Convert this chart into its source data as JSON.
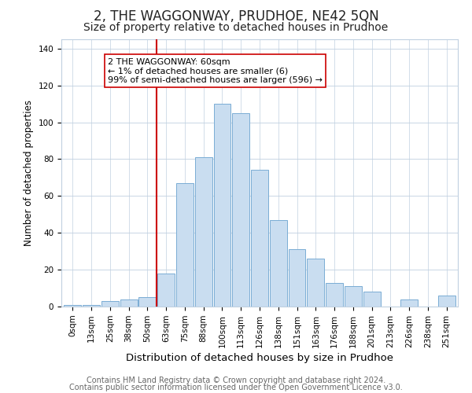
{
  "title": "2, THE WAGGONWAY, PRUDHOE, NE42 5QN",
  "subtitle": "Size of property relative to detached houses in Prudhoe",
  "xlabel": "Distribution of detached houses by size in Prudhoe",
  "ylabel": "Number of detached properties",
  "bar_labels": [
    "0sqm",
    "13sqm",
    "25sqm",
    "38sqm",
    "50sqm",
    "63sqm",
    "75sqm",
    "88sqm",
    "100sqm",
    "113sqm",
    "126sqm",
    "138sqm",
    "151sqm",
    "163sqm",
    "176sqm",
    "188sqm",
    "201sqm",
    "213sqm",
    "226sqm",
    "238sqm",
    "251sqm"
  ],
  "bar_heights": [
    1,
    1,
    3,
    4,
    5,
    18,
    67,
    81,
    110,
    105,
    74,
    47,
    31,
    26,
    13,
    11,
    8,
    0,
    4,
    0,
    6
  ],
  "bar_color": "#c9ddf0",
  "bar_edge_color": "#7aadd4",
  "vline_x_idx": 5,
  "vline_color": "#cc0000",
  "annotation_text": "2 THE WAGGONWAY: 60sqm\n← 1% of detached houses are smaller (6)\n99% of semi-detached houses are larger (596) →",
  "annotation_box_edgecolor": "#cc0000",
  "ylim": [
    0,
    145
  ],
  "yticks": [
    0,
    20,
    40,
    60,
    80,
    100,
    120,
    140
  ],
  "footer_line1": "Contains HM Land Registry data © Crown copyright and database right 2024.",
  "footer_line2": "Contains public sector information licensed under the Open Government Licence v3.0.",
  "bg_color": "#ffffff",
  "grid_color": "#c0d0e0",
  "title_fontsize": 12,
  "subtitle_fontsize": 10,
  "xlabel_fontsize": 9.5,
  "ylabel_fontsize": 8.5,
  "tick_fontsize": 7.5,
  "annot_fontsize": 8,
  "footer_fontsize": 7
}
